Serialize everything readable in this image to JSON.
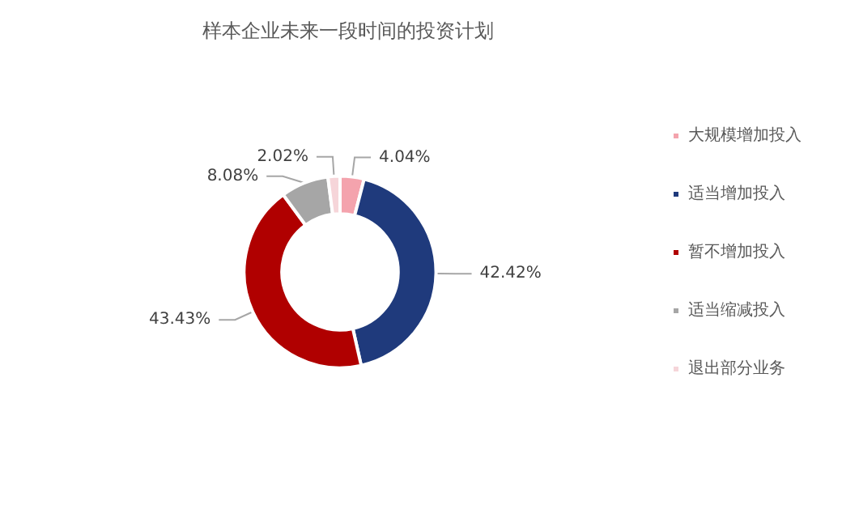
{
  "chart_data": {
    "type": "donut",
    "title": "样本企业未来一段时间的投资计划",
    "categories": [
      "大规模增加投入",
      "适当增加投入",
      "暂不增加投入",
      "适当缩减投入",
      "退出部分业务"
    ],
    "values": [
      4.04,
      42.42,
      43.43,
      8.08,
      2.02
    ],
    "colors": [
      "#f4a3ad",
      "#1f3a7c",
      "#b00000",
      "#a6a6a6",
      "#f6d5d9"
    ],
    "value_labels": [
      "4.04%",
      "42.42%",
      "43.43%",
      "8.08%",
      "2.02%"
    ],
    "legend": "right"
  }
}
